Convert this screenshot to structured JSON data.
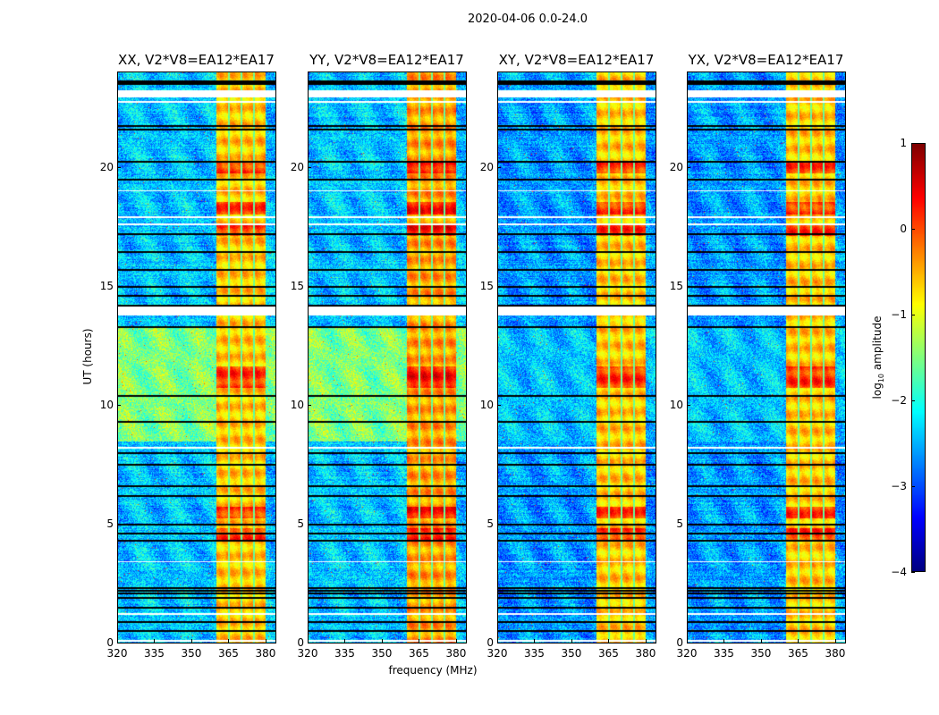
{
  "chart_data": {
    "type": "heatmap",
    "title": "2020-04-06 0.0-24.0",
    "xlabel": "frequency (MHz)",
    "ylabel": "UT (hours)",
    "xlim": [
      320,
      384
    ],
    "ylim": [
      0,
      24
    ],
    "xticks": [
      "320",
      "335",
      "350",
      "365",
      "380"
    ],
    "xtick_values": [
      320,
      335,
      350,
      365,
      380
    ],
    "yticks": [
      "0",
      "5",
      "10",
      "15",
      "20"
    ],
    "ytick_values": [
      0,
      5,
      10,
      15,
      20
    ],
    "colorbar": {
      "label_main": "log",
      "label_sub": "10",
      "label_rest": " amplitude",
      "range": [
        -4,
        1
      ],
      "ticks": [
        "1",
        "0",
        "−1",
        "−2",
        "−3",
        "−4"
      ],
      "tick_values": [
        1,
        0,
        -1,
        -2,
        -3,
        -4
      ],
      "colormap": "jet"
    },
    "panels": [
      {
        "title": "XX, V2*V8=EA12*EA17",
        "background_level": -2.4,
        "band_level": -0.6,
        "quiet_level_8_13h": -1.5
      },
      {
        "title": "YY, V2*V8=EA12*EA17",
        "background_level": -2.4,
        "band_level": -0.4,
        "quiet_level_8_13h": -1.5
      },
      {
        "title": "XY, V2*V8=EA12*EA17",
        "background_level": -2.6,
        "band_level": -0.6,
        "quiet_level_8_13h": -2.4
      },
      {
        "title": "YX, V2*V8=EA12*EA17",
        "background_level": -2.6,
        "band_level": -0.6,
        "quiet_level_8_13h": -2.4
      }
    ],
    "bright_band_mhz": [
      360,
      380
    ],
    "subband_edges_mhz": [
      365,
      370,
      375
    ],
    "flagged_hours": [
      23.65,
      23.55,
      21.75,
      21.6,
      20.25,
      19.5,
      17.2,
      16.45,
      15.7,
      15.0,
      14.6,
      14.2,
      13.3,
      10.4,
      9.3,
      8.0,
      7.5,
      6.6,
      6.2,
      5.0,
      4.6,
      4.3,
      2.3,
      2.2,
      2.1,
      1.9,
      1.5,
      0.9,
      0.5
    ],
    "gap_hours": [
      [
        22.95,
        23.25
      ],
      [
        22.75,
        22.8
      ],
      [
        19.0,
        19.05
      ],
      [
        17.9,
        17.95
      ],
      [
        17.6,
        17.65
      ],
      [
        13.8,
        14.15
      ],
      [
        8.2,
        8.25
      ],
      [
        3.4,
        3.45
      ],
      [
        1.2,
        1.25
      ],
      [
        0.05,
        0.15
      ]
    ],
    "hot_hours": [
      5.5,
      11.0,
      11.4,
      18.3,
      20.0,
      17.4,
      4.6
    ]
  }
}
